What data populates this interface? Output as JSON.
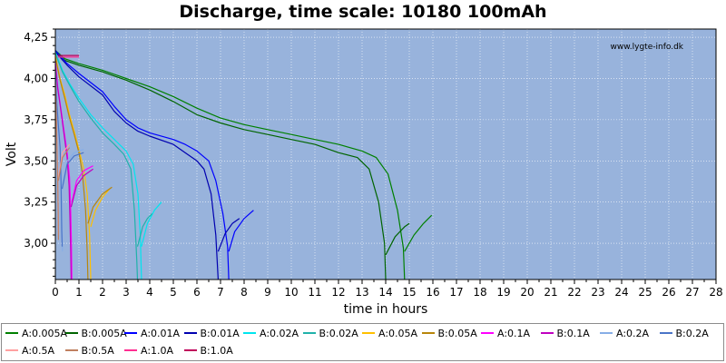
{
  "chart_data": {
    "type": "line",
    "title": "Discharge, time scale: 10180 100mAh",
    "xlabel": "time in hours",
    "ylabel": "Volt",
    "watermark": "www.lygte-info.dk",
    "xlim": [
      0,
      28
    ],
    "ylim": [
      2.78,
      4.3
    ],
    "xticks": [
      "0",
      "1",
      "2",
      "3",
      "4",
      "5",
      "6",
      "7",
      "8",
      "9",
      "10",
      "11",
      "12",
      "13",
      "14",
      "15",
      "16",
      "17",
      "18",
      "19",
      "20",
      "21",
      "22",
      "23",
      "24",
      "25",
      "26",
      "27",
      "28"
    ],
    "yticks": [
      {
        "value": 3.0,
        "label": "3,00"
      },
      {
        "value": 3.25,
        "label": "3,25"
      },
      {
        "value": 3.5,
        "label": "3,50"
      },
      {
        "value": 3.75,
        "label": "3,75"
      },
      {
        "value": 4.0,
        "label": "4,00"
      },
      {
        "value": 4.25,
        "label": "4,25"
      }
    ],
    "grid": true,
    "legend_position": "bottom",
    "plot_background": "#98b3dc",
    "series": [
      {
        "name": "A:0.005A",
        "color": "#008000",
        "points": [
          [
            0,
            4.17
          ],
          [
            0.4,
            4.12
          ],
          [
            1,
            4.09
          ],
          [
            2,
            4.05
          ],
          [
            3,
            4.0
          ],
          [
            4,
            3.95
          ],
          [
            5,
            3.89
          ],
          [
            6,
            3.82
          ],
          [
            7,
            3.76
          ],
          [
            8,
            3.72
          ],
          [
            9,
            3.69
          ],
          [
            10,
            3.66
          ],
          [
            11,
            3.63
          ],
          [
            12,
            3.6
          ],
          [
            13,
            3.56
          ],
          [
            13.6,
            3.52
          ],
          [
            14.1,
            3.42
          ],
          [
            14.5,
            3.2
          ],
          [
            14.75,
            2.97
          ],
          [
            14.8,
            2.78
          ]
        ],
        "recovery": [
          [
            14.8,
            2.95
          ],
          [
            15.2,
            3.05
          ],
          [
            15.6,
            3.12
          ],
          [
            15.95,
            3.17
          ]
        ]
      },
      {
        "name": "B:0.005A",
        "color": "#006400",
        "points": [
          [
            0,
            4.16
          ],
          [
            0.4,
            4.11
          ],
          [
            1,
            4.08
          ],
          [
            2,
            4.04
          ],
          [
            3,
            3.99
          ],
          [
            4,
            3.93
          ],
          [
            5,
            3.86
          ],
          [
            6,
            3.78
          ],
          [
            7,
            3.73
          ],
          [
            8,
            3.69
          ],
          [
            9,
            3.66
          ],
          [
            10,
            3.63
          ],
          [
            11,
            3.6
          ],
          [
            12,
            3.55
          ],
          [
            12.8,
            3.52
          ],
          [
            13.3,
            3.45
          ],
          [
            13.7,
            3.25
          ],
          [
            13.95,
            3.0
          ],
          [
            14.0,
            2.78
          ]
        ],
        "recovery": [
          [
            14.0,
            2.93
          ],
          [
            14.4,
            3.04
          ],
          [
            14.8,
            3.1
          ],
          [
            15.0,
            3.12
          ]
        ]
      },
      {
        "name": "A:0.01A",
        "color": "#0000ff",
        "points": [
          [
            0,
            4.17
          ],
          [
            0.5,
            4.09
          ],
          [
            1,
            4.03
          ],
          [
            2,
            3.92
          ],
          [
            2.5,
            3.83
          ],
          [
            3,
            3.75
          ],
          [
            3.5,
            3.7
          ],
          [
            4,
            3.67
          ],
          [
            5,
            3.63
          ],
          [
            5.5,
            3.6
          ],
          [
            6,
            3.56
          ],
          [
            6.5,
            3.5
          ],
          [
            6.8,
            3.38
          ],
          [
            7.1,
            3.18
          ],
          [
            7.3,
            2.98
          ],
          [
            7.35,
            2.78
          ]
        ],
        "recovery": [
          [
            7.35,
            2.95
          ],
          [
            7.6,
            3.07
          ],
          [
            8,
            3.15
          ],
          [
            8.4,
            3.2
          ]
        ]
      },
      {
        "name": "B:0.01A",
        "color": "#0000b0",
        "points": [
          [
            0,
            4.16
          ],
          [
            0.5,
            4.08
          ],
          [
            1,
            4.01
          ],
          [
            2,
            3.9
          ],
          [
            2.5,
            3.8
          ],
          [
            3,
            3.73
          ],
          [
            3.5,
            3.68
          ],
          [
            4,
            3.65
          ],
          [
            5,
            3.6
          ],
          [
            5.5,
            3.55
          ],
          [
            6,
            3.5
          ],
          [
            6.3,
            3.45
          ],
          [
            6.6,
            3.3
          ],
          [
            6.8,
            3.05
          ],
          [
            6.9,
            2.78
          ]
        ],
        "recovery": [
          [
            6.9,
            2.95
          ],
          [
            7.2,
            3.06
          ],
          [
            7.5,
            3.12
          ],
          [
            7.8,
            3.15
          ]
        ]
      },
      {
        "name": "A:0.02A",
        "color": "#00e5ee",
        "points": [
          [
            0,
            4.16
          ],
          [
            0.3,
            4.05
          ],
          [
            0.6,
            3.97
          ],
          [
            1,
            3.88
          ],
          [
            1.5,
            3.78
          ],
          [
            2,
            3.7
          ],
          [
            2.5,
            3.63
          ],
          [
            3,
            3.56
          ],
          [
            3.3,
            3.48
          ],
          [
            3.5,
            3.3
          ],
          [
            3.6,
            3.05
          ],
          [
            3.65,
            2.78
          ]
        ],
        "recovery": [
          [
            3.65,
            2.98
          ],
          [
            3.9,
            3.12
          ],
          [
            4.2,
            3.2
          ],
          [
            4.5,
            3.25
          ]
        ]
      },
      {
        "name": "B:0.02A",
        "color": "#20b2aa",
        "points": [
          [
            0,
            4.15
          ],
          [
            0.3,
            4.04
          ],
          [
            0.6,
            3.96
          ],
          [
            1,
            3.86
          ],
          [
            1.5,
            3.76
          ],
          [
            2,
            3.67
          ],
          [
            2.5,
            3.6
          ],
          [
            2.9,
            3.54
          ],
          [
            3.2,
            3.45
          ],
          [
            3.35,
            3.2
          ],
          [
            3.45,
            2.9
          ],
          [
            3.48,
            2.78
          ]
        ],
        "recovery": [
          [
            3.48,
            2.98
          ],
          [
            3.7,
            3.1
          ],
          [
            3.9,
            3.15
          ],
          [
            4.1,
            3.18
          ]
        ]
      },
      {
        "name": "A:0.05A",
        "color": "#ffc000",
        "points": [
          [
            0,
            4.14
          ],
          [
            0.2,
            4.0
          ],
          [
            0.4,
            3.9
          ],
          [
            0.6,
            3.78
          ],
          [
            0.8,
            3.68
          ],
          [
            1,
            3.57
          ],
          [
            1.2,
            3.45
          ],
          [
            1.35,
            3.3
          ],
          [
            1.45,
            3.05
          ],
          [
            1.5,
            2.78
          ]
        ],
        "recovery": [
          [
            1.5,
            3.1
          ],
          [
            1.7,
            3.2
          ],
          [
            2.0,
            3.28
          ],
          [
            2.3,
            3.33
          ]
        ]
      },
      {
        "name": "B:0.05A",
        "color": "#b8860b",
        "points": [
          [
            0,
            4.13
          ],
          [
            0.2,
            3.99
          ],
          [
            0.4,
            3.88
          ],
          [
            0.6,
            3.76
          ],
          [
            0.8,
            3.66
          ],
          [
            1,
            3.55
          ],
          [
            1.15,
            3.42
          ],
          [
            1.28,
            3.2
          ],
          [
            1.35,
            2.95
          ],
          [
            1.38,
            2.78
          ]
        ],
        "recovery": [
          [
            1.38,
            3.12
          ],
          [
            1.6,
            3.22
          ],
          [
            2.0,
            3.3
          ],
          [
            2.4,
            3.34
          ]
        ]
      },
      {
        "name": "A:0.1A",
        "color": "#ff00ff",
        "points": [
          [
            0,
            4.1
          ],
          [
            0.1,
            3.95
          ],
          [
            0.2,
            3.85
          ],
          [
            0.35,
            3.7
          ],
          [
            0.5,
            3.55
          ],
          [
            0.6,
            3.4
          ],
          [
            0.65,
            3.2
          ],
          [
            0.68,
            3.0
          ],
          [
            0.7,
            2.78
          ]
        ],
        "recovery": [
          [
            0.7,
            3.25
          ],
          [
            0.9,
            3.38
          ],
          [
            1.2,
            3.44
          ],
          [
            1.6,
            3.47
          ]
        ]
      },
      {
        "name": "B:0.1A",
        "color": "#c000c0",
        "points": [
          [
            0,
            4.09
          ],
          [
            0.1,
            3.94
          ],
          [
            0.2,
            3.84
          ],
          [
            0.35,
            3.68
          ],
          [
            0.5,
            3.52
          ],
          [
            0.58,
            3.35
          ],
          [
            0.62,
            3.15
          ],
          [
            0.65,
            2.95
          ],
          [
            0.67,
            2.78
          ]
        ],
        "recovery": [
          [
            0.67,
            3.22
          ],
          [
            0.9,
            3.35
          ],
          [
            1.2,
            3.41
          ],
          [
            1.6,
            3.45
          ]
        ]
      },
      {
        "name": "A:0.2A",
        "color": "#87aee6",
        "points": [
          [
            0,
            4.05
          ],
          [
            0.05,
            3.9
          ],
          [
            0.12,
            3.75
          ],
          [
            0.2,
            3.6
          ],
          [
            0.25,
            3.4
          ],
          [
            0.28,
            3.1
          ],
          [
            0.3,
            2.95
          ]
        ],
        "recovery": [
          [
            0.3,
            3.35
          ],
          [
            0.5,
            3.5
          ],
          [
            0.8,
            3.55
          ],
          [
            1.2,
            3.57
          ]
        ]
      },
      {
        "name": "B:0.2A",
        "color": "#4a74c8",
        "points": [
          [
            0,
            4.04
          ],
          [
            0.05,
            3.88
          ],
          [
            0.12,
            3.73
          ],
          [
            0.2,
            3.58
          ],
          [
            0.24,
            3.38
          ],
          [
            0.27,
            3.08
          ],
          [
            0.29,
            2.98
          ]
        ],
        "recovery": [
          [
            0.29,
            3.33
          ],
          [
            0.5,
            3.48
          ],
          [
            0.8,
            3.53
          ],
          [
            1.2,
            3.55
          ]
        ]
      },
      {
        "name": "A:0.5A",
        "color": "#ffa0a0",
        "points": [
          [
            0,
            3.98
          ],
          [
            0.03,
            3.82
          ],
          [
            0.06,
            3.65
          ],
          [
            0.1,
            3.42
          ],
          [
            0.12,
            3.22
          ],
          [
            0.14,
            3.05
          ]
        ],
        "recovery": [
          [
            0.14,
            3.4
          ],
          [
            0.3,
            3.55
          ],
          [
            0.6,
            3.6
          ]
        ]
      },
      {
        "name": "B:0.5A",
        "color": "#c08060",
        "points": [
          [
            0,
            3.97
          ],
          [
            0.03,
            3.8
          ],
          [
            0.06,
            3.62
          ],
          [
            0.1,
            3.38
          ],
          [
            0.12,
            3.18
          ],
          [
            0.13,
            3.02
          ]
        ],
        "recovery": [
          [
            0.13,
            3.38
          ],
          [
            0.3,
            3.52
          ],
          [
            0.6,
            3.58
          ]
        ]
      },
      {
        "name": "A:1.0A",
        "color": "#ff2f92",
        "points": [
          [
            0.1,
            4.13
          ],
          [
            1.0,
            4.13
          ]
        ],
        "recovery": []
      },
      {
        "name": "B:1.0A",
        "color": "#c0005a",
        "points": [
          [
            0.1,
            4.14
          ],
          [
            1.0,
            4.14
          ]
        ],
        "recovery": []
      }
    ]
  }
}
